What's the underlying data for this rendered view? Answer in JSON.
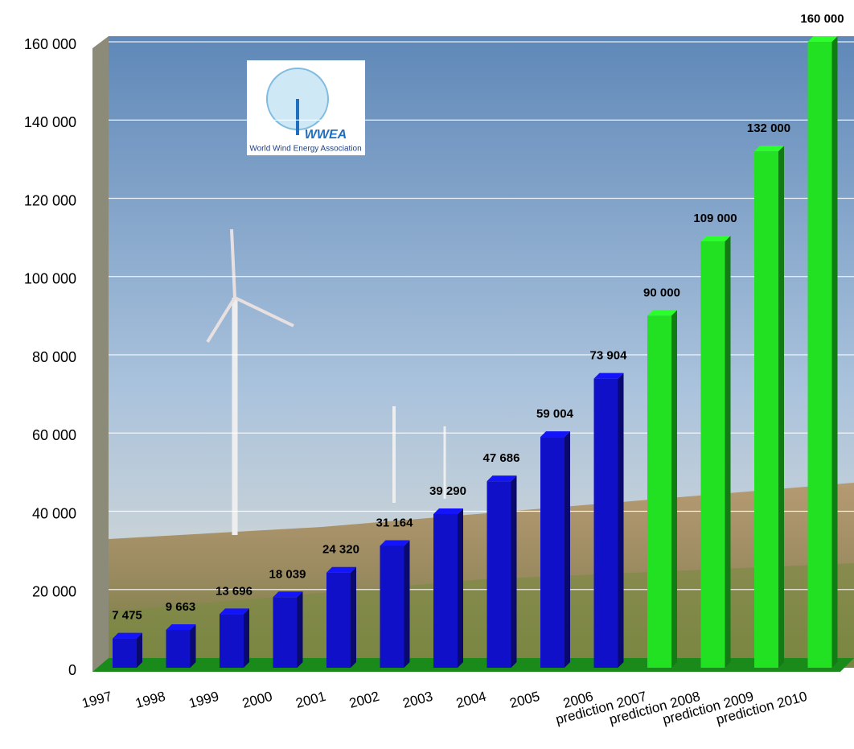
{
  "chart_data": {
    "type": "bar",
    "categories": [
      "1997",
      "1998",
      "1999",
      "2000",
      "2001",
      "2002",
      "2003",
      "2004",
      "2005",
      "2006",
      "prediction 2007",
      "prediction 2008",
      "prediction 2009",
      "prediction 2010"
    ],
    "values": [
      7475,
      9663,
      13696,
      18039,
      24320,
      31164,
      39290,
      47686,
      59004,
      73904,
      90000,
      109000,
      132000,
      160000
    ],
    "value_labels": [
      "7 475",
      "9 663",
      "13 696",
      "18 039",
      "24 320",
      "31 164",
      "39 290",
      "47 686",
      "59 004",
      "73 904",
      "90 000",
      "109 000",
      "132 000",
      "160 000"
    ],
    "colors": [
      "#1010c8",
      "#1010c8",
      "#1010c8",
      "#1010c8",
      "#1010c8",
      "#1010c8",
      "#1010c8",
      "#1010c8",
      "#1010c8",
      "#1010c8",
      "#22e022",
      "#22e022",
      "#22e022",
      "#22e022"
    ],
    "ylim": [
      0,
      160000
    ],
    "yticks": [
      0,
      {
        "value": 20000,
        "label": "20 000"
      },
      {
        "value": 40000,
        "label": "40 000"
      },
      {
        "value": 60000,
        "label": "60 000"
      },
      {
        "value": 80000,
        "label": "80 000"
      },
      {
        "value": 100000,
        "label": "100 000"
      },
      {
        "value": 120000,
        "label": "120 000"
      },
      {
        "value": 140000,
        "label": "140 000"
      },
      {
        "value": 160000,
        "label": "160 000"
      }
    ],
    "grid": true,
    "logo": {
      "title": "WWEA",
      "subtitle": "World Wind Energy Association"
    }
  }
}
